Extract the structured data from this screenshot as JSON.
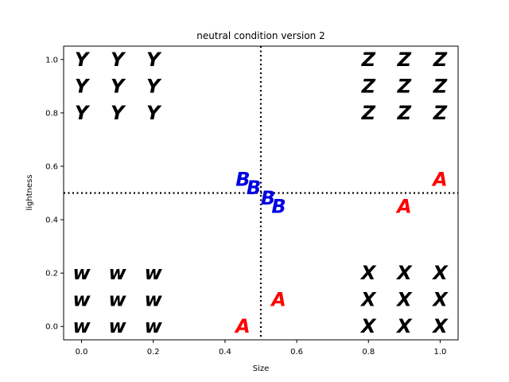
{
  "chart_data": {
    "type": "scatter",
    "title": "neutral condition version 2",
    "xlabel": "Size",
    "ylabel": "lightness",
    "xlim": [
      -0.05,
      1.05
    ],
    "ylim": [
      -0.05,
      1.05
    ],
    "xticks": [
      0.0,
      0.2,
      0.4,
      0.6,
      0.8,
      1.0
    ],
    "xtick_labels": [
      "0.0",
      "0.2",
      "0.4",
      "0.6",
      "0.8",
      "1.0"
    ],
    "yticks": [
      0.0,
      0.2,
      0.4,
      0.6,
      0.8,
      1.0
    ],
    "ytick_labels": [
      "0.0",
      "0.2",
      "0.4",
      "0.6",
      "0.8",
      "1.0"
    ],
    "reference_lines": {
      "vertical_x": 0.5,
      "horizontal_y": 0.5,
      "style": "dotted"
    },
    "grid": false,
    "colors": {
      "red": "#ff0000",
      "blue": "#0000e0",
      "black": "#000000"
    },
    "points": [
      {
        "label": "Y",
        "x": 0.0,
        "y": 1.0,
        "color": "#000000"
      },
      {
        "label": "Y",
        "x": 0.1,
        "y": 1.0,
        "color": "#000000"
      },
      {
        "label": "Y",
        "x": 0.2,
        "y": 1.0,
        "color": "#000000"
      },
      {
        "label": "Y",
        "x": 0.0,
        "y": 0.9,
        "color": "#000000"
      },
      {
        "label": "Y",
        "x": 0.1,
        "y": 0.9,
        "color": "#000000"
      },
      {
        "label": "Y",
        "x": 0.2,
        "y": 0.9,
        "color": "#000000"
      },
      {
        "label": "Y",
        "x": 0.0,
        "y": 0.8,
        "color": "#000000"
      },
      {
        "label": "Y",
        "x": 0.1,
        "y": 0.8,
        "color": "#000000"
      },
      {
        "label": "Y",
        "x": 0.2,
        "y": 0.8,
        "color": "#000000"
      },
      {
        "label": "Z",
        "x": 0.8,
        "y": 1.0,
        "color": "#000000"
      },
      {
        "label": "Z",
        "x": 0.9,
        "y": 1.0,
        "color": "#000000"
      },
      {
        "label": "Z",
        "x": 1.0,
        "y": 1.0,
        "color": "#000000"
      },
      {
        "label": "Z",
        "x": 0.8,
        "y": 0.9,
        "color": "#000000"
      },
      {
        "label": "Z",
        "x": 0.9,
        "y": 0.9,
        "color": "#000000"
      },
      {
        "label": "Z",
        "x": 1.0,
        "y": 0.9,
        "color": "#000000"
      },
      {
        "label": "Z",
        "x": 0.8,
        "y": 0.8,
        "color": "#000000"
      },
      {
        "label": "Z",
        "x": 0.9,
        "y": 0.8,
        "color": "#000000"
      },
      {
        "label": "Z",
        "x": 1.0,
        "y": 0.8,
        "color": "#000000"
      },
      {
        "label": "W",
        "x": 0.0,
        "y": 0.2,
        "color": "#000000"
      },
      {
        "label": "W",
        "x": 0.1,
        "y": 0.2,
        "color": "#000000"
      },
      {
        "label": "W",
        "x": 0.2,
        "y": 0.2,
        "color": "#000000"
      },
      {
        "label": "W",
        "x": 0.0,
        "y": 0.1,
        "color": "#000000"
      },
      {
        "label": "W",
        "x": 0.1,
        "y": 0.1,
        "color": "#000000"
      },
      {
        "label": "W",
        "x": 0.2,
        "y": 0.1,
        "color": "#000000"
      },
      {
        "label": "W",
        "x": 0.0,
        "y": 0.0,
        "color": "#000000"
      },
      {
        "label": "W",
        "x": 0.1,
        "y": 0.0,
        "color": "#000000"
      },
      {
        "label": "W",
        "x": 0.2,
        "y": 0.0,
        "color": "#000000"
      },
      {
        "label": "X",
        "x": 0.8,
        "y": 0.2,
        "color": "#000000"
      },
      {
        "label": "X",
        "x": 0.9,
        "y": 0.2,
        "color": "#000000"
      },
      {
        "label": "X",
        "x": 1.0,
        "y": 0.2,
        "color": "#000000"
      },
      {
        "label": "X",
        "x": 0.8,
        "y": 0.1,
        "color": "#000000"
      },
      {
        "label": "X",
        "x": 0.9,
        "y": 0.1,
        "color": "#000000"
      },
      {
        "label": "X",
        "x": 1.0,
        "y": 0.1,
        "color": "#000000"
      },
      {
        "label": "X",
        "x": 0.8,
        "y": 0.0,
        "color": "#000000"
      },
      {
        "label": "X",
        "x": 0.9,
        "y": 0.0,
        "color": "#000000"
      },
      {
        "label": "X",
        "x": 1.0,
        "y": 0.0,
        "color": "#000000"
      },
      {
        "label": "B",
        "x": 0.45,
        "y": 0.55,
        "color": "#0000e0"
      },
      {
        "label": "B",
        "x": 0.48,
        "y": 0.52,
        "color": "#0000e0"
      },
      {
        "label": "B",
        "x": 0.52,
        "y": 0.48,
        "color": "#0000e0"
      },
      {
        "label": "B",
        "x": 0.55,
        "y": 0.45,
        "color": "#0000e0"
      },
      {
        "label": "A",
        "x": 1.0,
        "y": 0.55,
        "color": "#ff0000"
      },
      {
        "label": "A",
        "x": 0.9,
        "y": 0.45,
        "color": "#ff0000"
      },
      {
        "label": "A",
        "x": 0.55,
        "y": 0.1,
        "color": "#ff0000"
      },
      {
        "label": "A",
        "x": 0.45,
        "y": 0.0,
        "color": "#ff0000"
      }
    ]
  }
}
